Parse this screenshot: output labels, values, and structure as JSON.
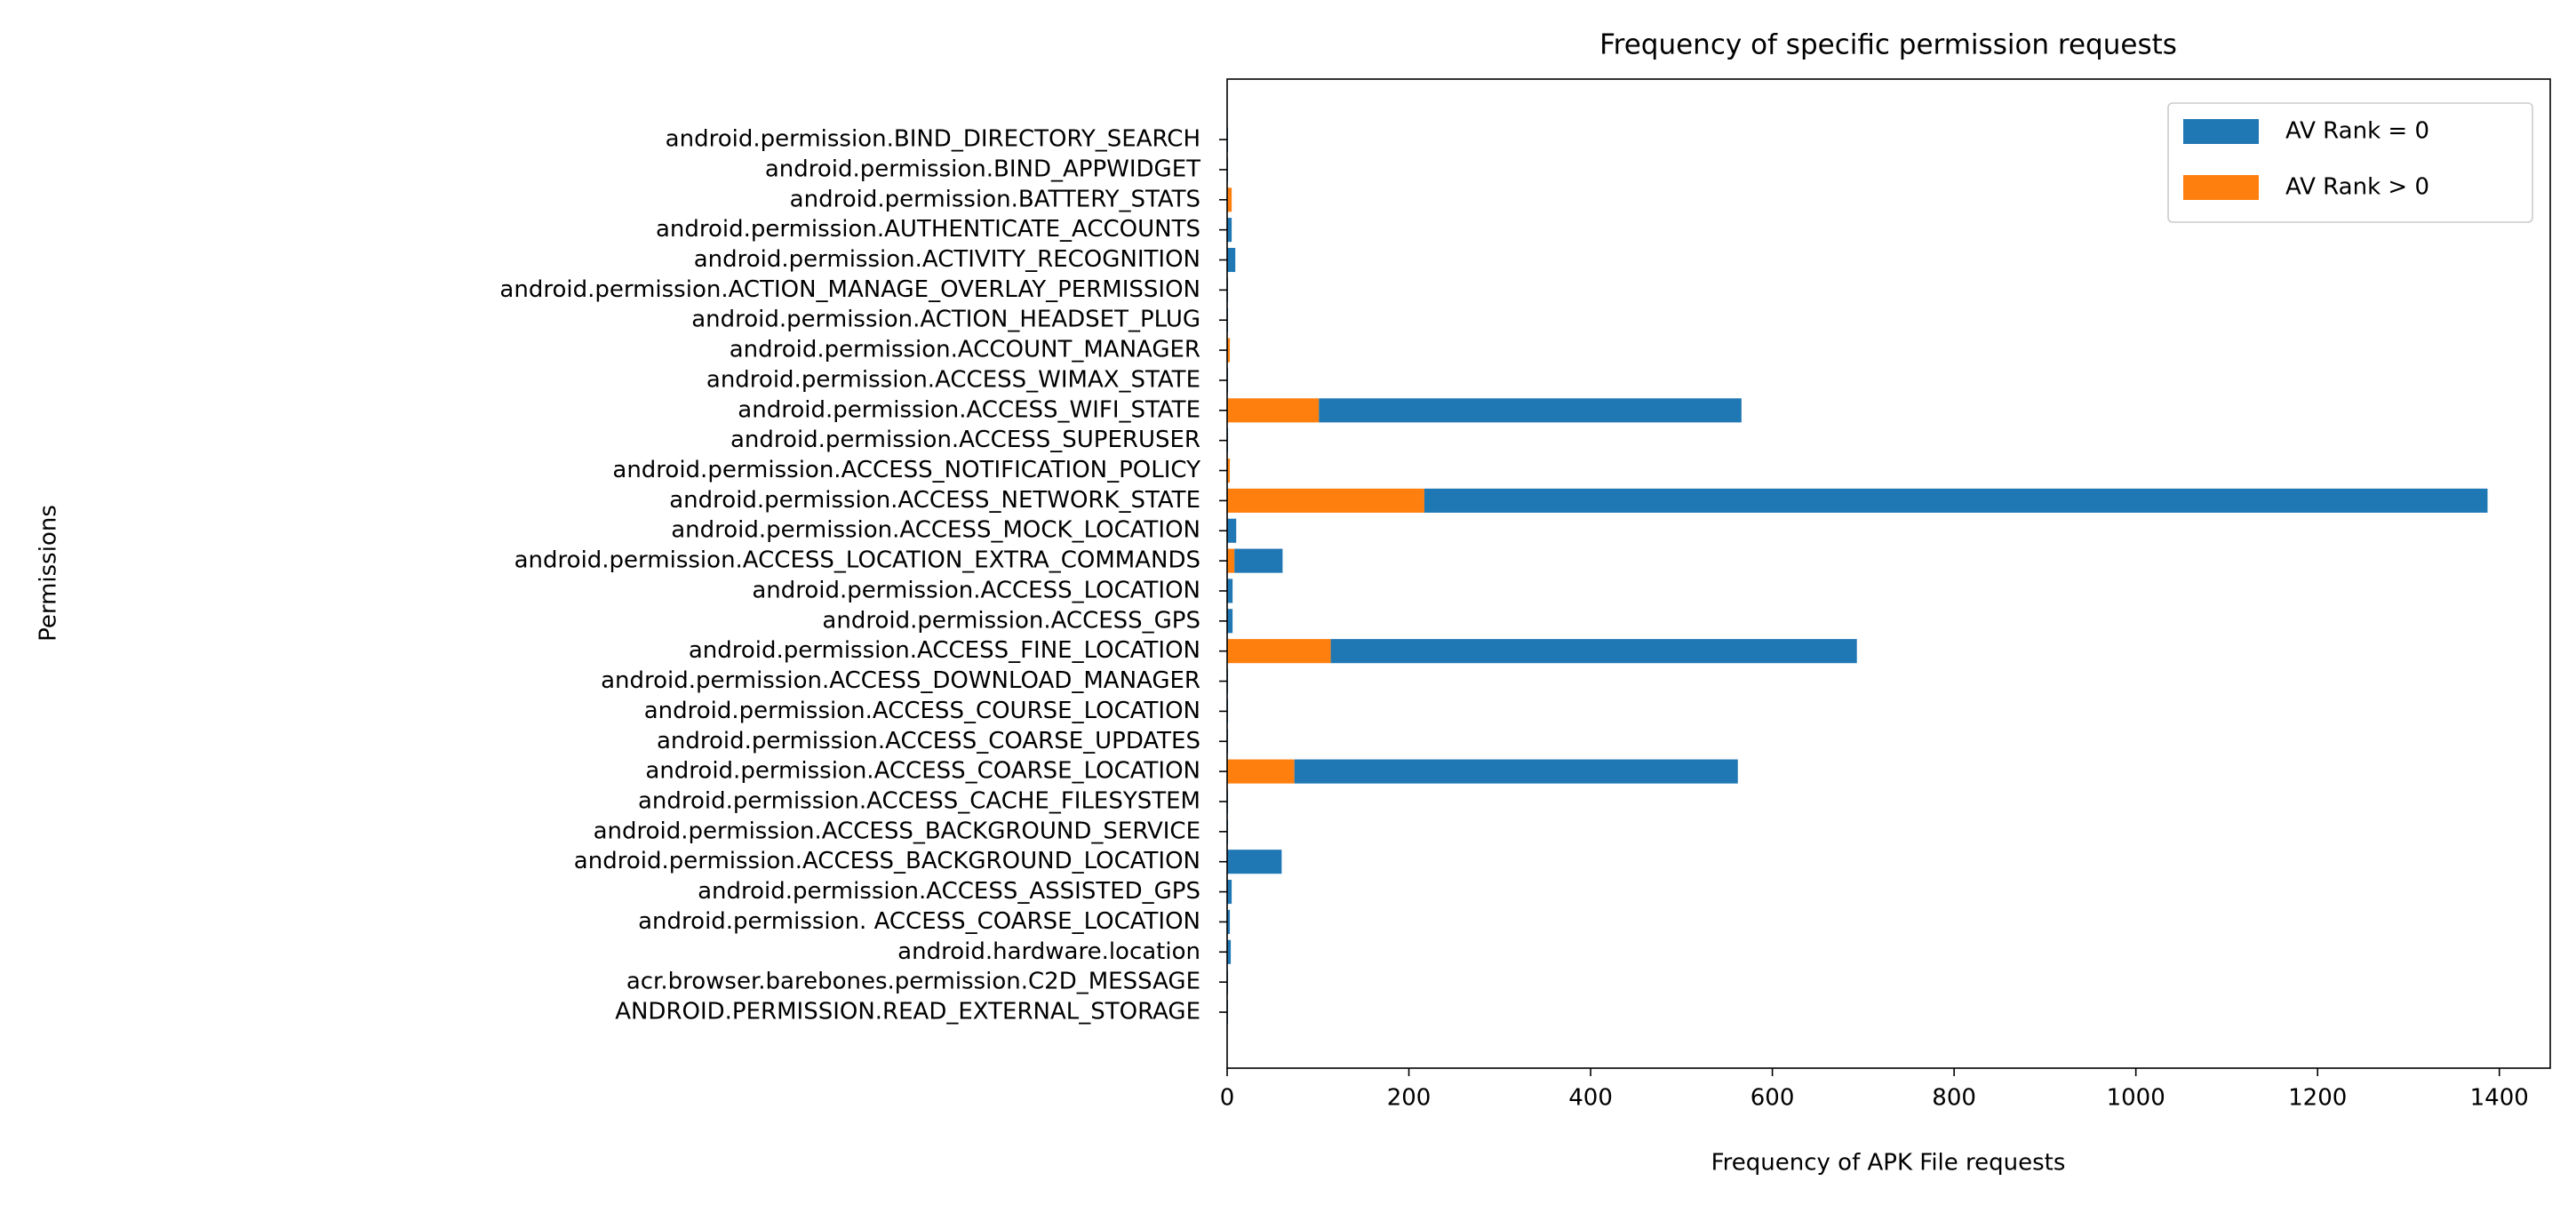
{
  "chart_data": {
    "type": "barh_stacked",
    "title": "Frequency of specific permission requests",
    "x_label": "Frequency of APK File requests",
    "y_label": "Permissions",
    "categories": [
      "ANDROID.PERMISSION.READ_EXTERNAL_STORAGE",
      "acr.browser.barebones.permission.C2D_MESSAGE",
      "android.hardware.location",
      "android.permission. ACCESS_COARSE_LOCATION",
      "android.permission.ACCESS_ASSISTED_GPS",
      "android.permission.ACCESS_BACKGROUND_LOCATION",
      "android.permission.ACCESS_BACKGROUND_SERVICE",
      "android.permission.ACCESS_CACHE_FILESYSTEM",
      "android.permission.ACCESS_COARSE_LOCATION",
      "android.permission.ACCESS_COARSE_UPDATES",
      "android.permission.ACCESS_COURSE_LOCATION",
      "android.permission.ACCESS_DOWNLOAD_MANAGER",
      "android.permission.ACCESS_FINE_LOCATION",
      "android.permission.ACCESS_GPS",
      "android.permission.ACCESS_LOCATION",
      "android.permission.ACCESS_LOCATION_EXTRA_COMMANDS",
      "android.permission.ACCESS_MOCK_LOCATION",
      "android.permission.ACCESS_NETWORK_STATE",
      "android.permission.ACCESS_NOTIFICATION_POLICY",
      "android.permission.ACCESS_SUPERUSER",
      "android.permission.ACCESS_WIFI_STATE",
      "android.permission.ACCESS_WIMAX_STATE",
      "android.permission.ACCOUNT_MANAGER",
      "android.permission.ACTION_HEADSET_PLUG",
      "android.permission.ACTION_MANAGE_OVERLAY_PERMISSION",
      "android.permission.ACTIVITY_RECOGNITION",
      "android.permission.AUTHENTICATE_ACCOUNTS",
      "android.permission.BATTERY_STATS",
      "android.permission.BIND_APPWIDGET",
      "android.permission.BIND_DIRECTORY_SEARCH"
    ],
    "series": [
      {
        "name": "AV Rank = 0",
        "color": "#1f77b4",
        "values": [
          1,
          1,
          4,
          3,
          5,
          60,
          1,
          1,
          488,
          1,
          1,
          1,
          579,
          6,
          6,
          53,
          10,
          1170,
          0,
          1,
          465,
          1,
          0,
          1,
          1,
          9,
          5,
          0,
          1,
          1
        ]
      },
      {
        "name": "AV Rank > 0",
        "color": "#ff7f0e",
        "values": [
          0,
          0,
          0,
          0,
          0,
          0,
          0,
          0,
          74,
          0,
          0,
          0,
          114,
          0,
          0,
          8,
          0,
          217,
          3,
          0,
          101,
          0,
          3,
          0,
          0,
          0,
          0,
          5,
          0,
          0
        ]
      }
    ],
    "xlim": [
      0,
      1456
    ],
    "xticks": [
      0,
      200,
      400,
      600,
      800,
      1000,
      1200,
      1400
    ],
    "legend": "upper right"
  }
}
